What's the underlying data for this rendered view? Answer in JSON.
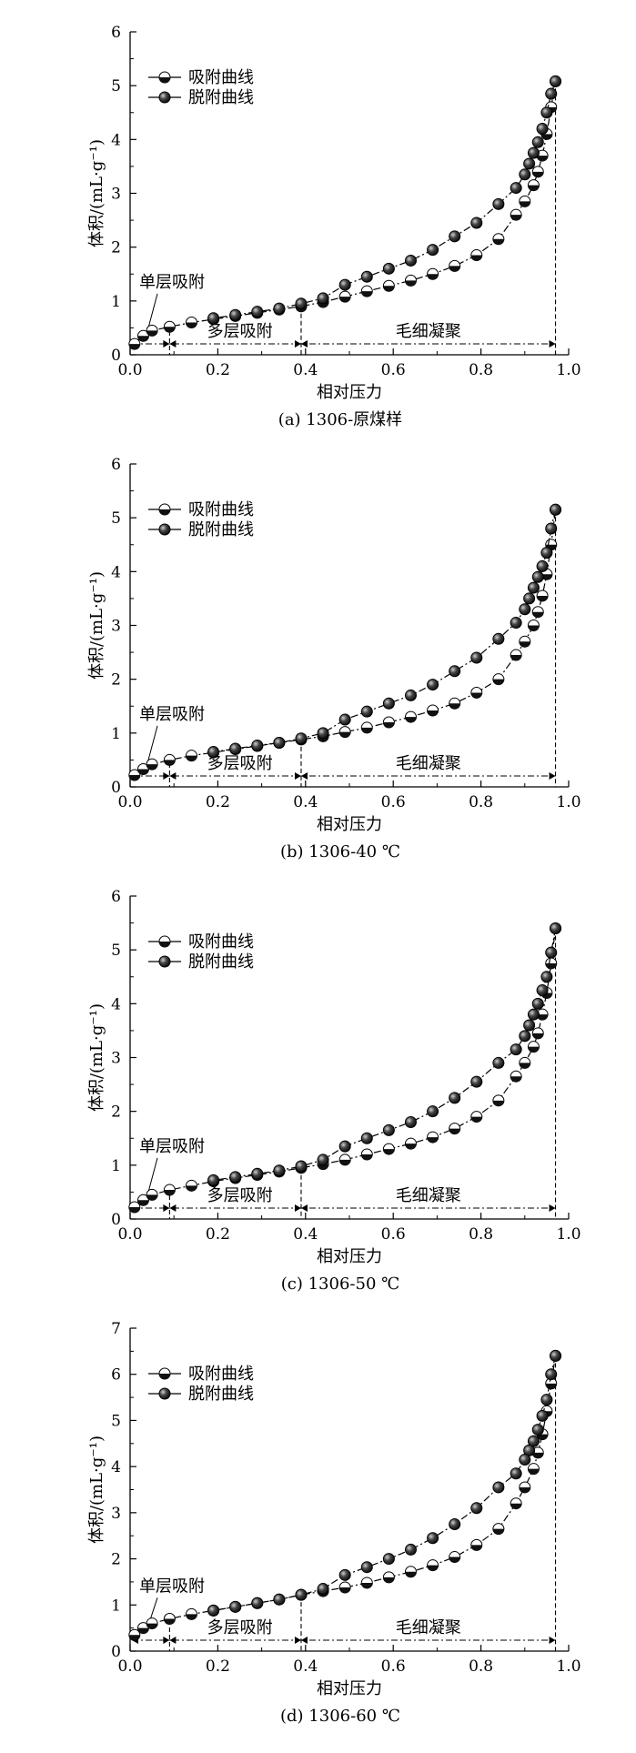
{
  "chart_data": [
    {
      "type": "line",
      "caption": "(a) 1306-原煤样",
      "xlabel": "相对压力",
      "ylabel": "体积/(mL·g⁻¹)",
      "xlim": [
        0,
        1.0
      ],
      "ylim": [
        0,
        6
      ],
      "xticks": [
        "0.0",
        "0.2",
        "0.4",
        "0.6",
        "0.8",
        "1.0"
      ],
      "yticks": [
        "0",
        "1",
        "2",
        "3",
        "4",
        "5",
        "6"
      ],
      "legend_position": "top-left",
      "series": [
        {
          "name": "吸附曲线",
          "marker": "half-filled-circle",
          "x": [
            0.01,
            0.03,
            0.05,
            0.09,
            0.14,
            0.19,
            0.24,
            0.29,
            0.34,
            0.39,
            0.44,
            0.49,
            0.54,
            0.59,
            0.64,
            0.69,
            0.74,
            0.79,
            0.84,
            0.88,
            0.9,
            0.92,
            0.93,
            0.94,
            0.95,
            0.96,
            0.97
          ],
          "y": [
            0.2,
            0.35,
            0.45,
            0.52,
            0.6,
            0.66,
            0.72,
            0.78,
            0.84,
            0.9,
            0.98,
            1.08,
            1.18,
            1.28,
            1.38,
            1.5,
            1.65,
            1.85,
            2.15,
            2.6,
            2.85,
            3.15,
            3.4,
            3.7,
            4.1,
            4.6,
            5.08
          ]
        },
        {
          "name": "脱附曲线",
          "marker": "filled-circle",
          "x": [
            0.97,
            0.96,
            0.95,
            0.94,
            0.93,
            0.92,
            0.91,
            0.9,
            0.88,
            0.84,
            0.79,
            0.74,
            0.69,
            0.64,
            0.59,
            0.54,
            0.49,
            0.44,
            0.39,
            0.34,
            0.29,
            0.24,
            0.19
          ],
          "y": [
            5.08,
            4.85,
            4.5,
            4.2,
            3.95,
            3.75,
            3.55,
            3.35,
            3.1,
            2.8,
            2.45,
            2.2,
            1.95,
            1.75,
            1.6,
            1.45,
            1.3,
            1.05,
            0.95,
            0.86,
            0.8,
            0.74,
            0.68
          ]
        }
      ],
      "annotations": {
        "monolayer": {
          "label": "单层吸附",
          "x_range": [
            0.0,
            0.09
          ]
        },
        "multilayer": {
          "label": "多层吸附",
          "x_range": [
            0.09,
            0.39
          ]
        },
        "capillary": {
          "label": "毛细凝聚",
          "x_range": [
            0.39,
            0.97
          ]
        }
      }
    },
    {
      "type": "line",
      "caption": "(b) 1306-40 ℃",
      "xlabel": "相对压力",
      "ylabel": "体积/(mL·g⁻¹)",
      "xlim": [
        0,
        1.0
      ],
      "ylim": [
        0,
        6
      ],
      "xticks": [
        "0.0",
        "0.2",
        "0.4",
        "0.6",
        "0.8",
        "1.0"
      ],
      "yticks": [
        "0",
        "1",
        "2",
        "3",
        "4",
        "5",
        "6"
      ],
      "legend_position": "top-left",
      "series": [
        {
          "name": "吸附曲线",
          "marker": "half-filled-circle",
          "x": [
            0.01,
            0.03,
            0.05,
            0.09,
            0.14,
            0.19,
            0.24,
            0.29,
            0.34,
            0.39,
            0.44,
            0.49,
            0.54,
            0.59,
            0.64,
            0.69,
            0.74,
            0.79,
            0.84,
            0.88,
            0.9,
            0.92,
            0.93,
            0.94,
            0.95,
            0.96,
            0.97
          ],
          "y": [
            0.22,
            0.33,
            0.42,
            0.5,
            0.58,
            0.64,
            0.7,
            0.76,
            0.82,
            0.88,
            0.94,
            1.02,
            1.1,
            1.2,
            1.3,
            1.42,
            1.55,
            1.75,
            2.0,
            2.45,
            2.7,
            3.0,
            3.25,
            3.55,
            3.95,
            4.5,
            5.15
          ]
        },
        {
          "name": "脱附曲线",
          "marker": "filled-circle",
          "x": [
            0.97,
            0.96,
            0.95,
            0.94,
            0.93,
            0.92,
            0.91,
            0.9,
            0.88,
            0.84,
            0.79,
            0.74,
            0.69,
            0.64,
            0.59,
            0.54,
            0.49,
            0.44,
            0.39,
            0.34,
            0.29,
            0.24,
            0.19
          ],
          "y": [
            5.15,
            4.8,
            4.35,
            4.1,
            3.9,
            3.7,
            3.5,
            3.3,
            3.05,
            2.75,
            2.4,
            2.15,
            1.9,
            1.7,
            1.55,
            1.4,
            1.25,
            1.0,
            0.9,
            0.82,
            0.77,
            0.71,
            0.65
          ]
        }
      ],
      "annotations": {
        "monolayer": {
          "label": "单层吸附",
          "x_range": [
            0.0,
            0.09
          ]
        },
        "multilayer": {
          "label": "多层吸附",
          "x_range": [
            0.09,
            0.39
          ]
        },
        "capillary": {
          "label": "毛细凝聚",
          "x_range": [
            0.39,
            0.97
          ]
        }
      }
    },
    {
      "type": "line",
      "caption": "(c) 1306-50 ℃",
      "xlabel": "相对压力",
      "ylabel": "体积/(mL·g⁻¹)",
      "xlim": [
        0,
        1.0
      ],
      "ylim": [
        0,
        6
      ],
      "xticks": [
        "0.0",
        "0.2",
        "0.4",
        "0.6",
        "0.8",
        "1.0"
      ],
      "yticks": [
        "0",
        "1",
        "2",
        "3",
        "4",
        "5",
        "6"
      ],
      "legend_position": "top-left",
      "series": [
        {
          "name": "吸附曲线",
          "marker": "half-filled-circle",
          "x": [
            0.01,
            0.03,
            0.05,
            0.09,
            0.14,
            0.19,
            0.24,
            0.29,
            0.34,
            0.39,
            0.44,
            0.49,
            0.54,
            0.59,
            0.64,
            0.69,
            0.74,
            0.79,
            0.84,
            0.88,
            0.9,
            0.92,
            0.93,
            0.94,
            0.95,
            0.96,
            0.97
          ],
          "y": [
            0.22,
            0.35,
            0.45,
            0.54,
            0.62,
            0.7,
            0.76,
            0.82,
            0.88,
            0.95,
            1.02,
            1.1,
            1.2,
            1.3,
            1.4,
            1.52,
            1.68,
            1.9,
            2.2,
            2.65,
            2.9,
            3.2,
            3.45,
            3.8,
            4.2,
            4.75,
            5.4
          ]
        },
        {
          "name": "脱附曲线",
          "marker": "filled-circle",
          "x": [
            0.97,
            0.96,
            0.95,
            0.94,
            0.93,
            0.92,
            0.91,
            0.9,
            0.88,
            0.84,
            0.79,
            0.74,
            0.69,
            0.64,
            0.59,
            0.54,
            0.49,
            0.44,
            0.39,
            0.34,
            0.29,
            0.24,
            0.19
          ],
          "y": [
            5.4,
            4.95,
            4.5,
            4.25,
            4.0,
            3.8,
            3.6,
            3.4,
            3.15,
            2.9,
            2.55,
            2.25,
            2.0,
            1.8,
            1.65,
            1.5,
            1.35,
            1.1,
            0.98,
            0.9,
            0.84,
            0.78,
            0.72
          ]
        }
      ],
      "annotations": {
        "monolayer": {
          "label": "单层吸附",
          "x_range": [
            0.0,
            0.09
          ]
        },
        "multilayer": {
          "label": "多层吸附",
          "x_range": [
            0.09,
            0.39
          ]
        },
        "capillary": {
          "label": "毛细凝聚",
          "x_range": [
            0.39,
            0.97
          ]
        }
      }
    },
    {
      "type": "line",
      "caption": "(d) 1306-60 ℃",
      "xlabel": "相对压力",
      "ylabel": "体积/(mL·g⁻¹)",
      "xlim": [
        0,
        1.0
      ],
      "ylim": [
        0,
        7
      ],
      "xticks": [
        "0.0",
        "0.2",
        "0.4",
        "0.6",
        "0.8",
        "1.0"
      ],
      "yticks": [
        "0",
        "1",
        "2",
        "3",
        "4",
        "5",
        "6",
        "7"
      ],
      "legend_position": "top-left",
      "series": [
        {
          "name": "吸附曲线",
          "marker": "half-filled-circle",
          "x": [
            0.01,
            0.03,
            0.05,
            0.09,
            0.14,
            0.19,
            0.24,
            0.29,
            0.34,
            0.39,
            0.44,
            0.49,
            0.54,
            0.59,
            0.64,
            0.69,
            0.74,
            0.79,
            0.84,
            0.88,
            0.9,
            0.92,
            0.93,
            0.94,
            0.95,
            0.96,
            0.97
          ],
          "y": [
            0.35,
            0.5,
            0.6,
            0.7,
            0.8,
            0.88,
            0.96,
            1.04,
            1.12,
            1.22,
            1.3,
            1.38,
            1.48,
            1.6,
            1.72,
            1.86,
            2.04,
            2.3,
            2.65,
            3.2,
            3.55,
            3.95,
            4.3,
            4.7,
            5.2,
            5.8,
            6.4
          ]
        },
        {
          "name": "脱附曲线",
          "marker": "filled-circle",
          "x": [
            0.97,
            0.96,
            0.95,
            0.94,
            0.93,
            0.92,
            0.91,
            0.9,
            0.88,
            0.84,
            0.79,
            0.74,
            0.69,
            0.64,
            0.59,
            0.54,
            0.49,
            0.44,
            0.39,
            0.34,
            0.29,
            0.24,
            0.19
          ],
          "y": [
            6.4,
            6.0,
            5.45,
            5.1,
            4.8,
            4.55,
            4.35,
            4.15,
            3.85,
            3.55,
            3.1,
            2.75,
            2.45,
            2.2,
            2.0,
            1.82,
            1.65,
            1.35,
            1.22,
            1.12,
            1.04,
            0.96,
            0.88
          ]
        }
      ],
      "annotations": {
        "monolayer": {
          "label": "单层吸附",
          "x_range": [
            0.0,
            0.09
          ]
        },
        "multilayer": {
          "label": "多层吸附",
          "x_range": [
            0.09,
            0.39
          ]
        },
        "capillary": {
          "label": "毛细凝聚",
          "x_range": [
            0.39,
            0.97
          ]
        }
      }
    }
  ]
}
